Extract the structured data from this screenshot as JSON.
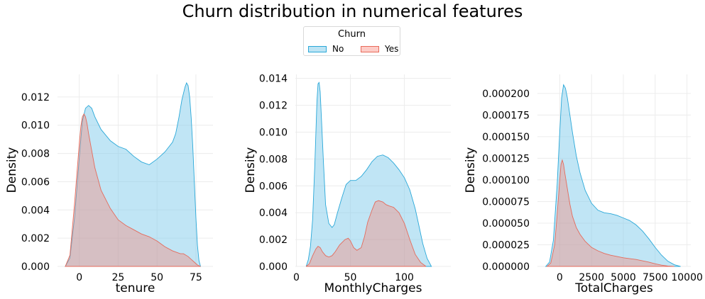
{
  "title": "Churn distribution in numerical features",
  "legend": {
    "title": "Churn",
    "entries": [
      {
        "label": "No",
        "fill": "#87ceeb",
        "stroke": "#2aa8d8"
      },
      {
        "label": "Yes",
        "fill": "#fa8072",
        "stroke": "#e86a5a"
      }
    ]
  },
  "colors": {
    "no_fill": "#87ceeb",
    "no_stroke": "#2aa8d8",
    "yes_fill": "#fa8072",
    "yes_stroke": "#e46b5c",
    "grid": "#ececec"
  },
  "chart_data": [
    {
      "type": "area",
      "xlabel": "tenure",
      "ylabel": "Density",
      "xlim": [
        -14,
        86
      ],
      "ylim": [
        0,
        0.0136
      ],
      "xticks": [
        0,
        25,
        50,
        75
      ],
      "xtick_labels": [
        "0",
        "25",
        "50",
        "75"
      ],
      "yticks": [
        0,
        0.002,
        0.004,
        0.006,
        0.008,
        0.01,
        0.012
      ],
      "ytick_labels": [
        "0.000",
        "0.002",
        "0.004",
        "0.006",
        "0.008",
        "0.010",
        "0.012"
      ],
      "grid": true,
      "series": [
        {
          "name": "No",
          "x": [
            -9,
            -6,
            -3,
            0,
            2,
            4,
            6,
            8,
            10,
            14,
            20,
            25,
            30,
            35,
            40,
            45,
            50,
            55,
            60,
            62,
            64,
            66,
            68,
            69,
            70,
            71,
            72,
            73,
            74,
            75,
            76,
            77,
            78
          ],
          "y": [
            0,
            0.0006,
            0.0035,
            0.0077,
            0.0103,
            0.0112,
            0.0114,
            0.0112,
            0.0106,
            0.0097,
            0.0089,
            0.0085,
            0.0083,
            0.0078,
            0.0074,
            0.0072,
            0.0076,
            0.0081,
            0.0088,
            0.0094,
            0.0105,
            0.0118,
            0.0127,
            0.013,
            0.0128,
            0.012,
            0.0105,
            0.0085,
            0.006,
            0.0035,
            0.0015,
            0.0004,
            0
          ]
        },
        {
          "name": "Yes",
          "x": [
            -9,
            -6,
            -3,
            0,
            1,
            2,
            3,
            4,
            5,
            6,
            8,
            10,
            14,
            20,
            25,
            30,
            35,
            40,
            45,
            50,
            55,
            60,
            65,
            67,
            70,
            72,
            74,
            76,
            78
          ],
          "y": [
            0,
            0.0008,
            0.0045,
            0.0087,
            0.0099,
            0.0106,
            0.0108,
            0.0106,
            0.0101,
            0.0094,
            0.0082,
            0.007,
            0.0054,
            0.0041,
            0.0033,
            0.0029,
            0.0026,
            0.0023,
            0.0021,
            0.0018,
            0.0014,
            0.0011,
            0.0009,
            0.0009,
            0.0007,
            0.0005,
            0.0003,
            0.0001,
            0
          ]
        }
      ]
    },
    {
      "type": "area",
      "xlabel": "MonthlyCharges",
      "ylabel": "Density",
      "xlim": [
        -1,
        143
      ],
      "ylim": [
        0,
        0.0143
      ],
      "xticks": [
        0,
        50,
        100
      ],
      "xtick_labels": [
        "0",
        "50",
        "100"
      ],
      "yticks": [
        0,
        0.002,
        0.004,
        0.006,
        0.008,
        0.01,
        0.012,
        0.014
      ],
      "ytick_labels": [
        "0.000",
        "0.002",
        "0.004",
        "0.006",
        "0.008",
        "0.010",
        "0.012",
        "0.014"
      ],
      "grid": true,
      "series": [
        {
          "name": "No",
          "x": [
            9,
            11,
            13,
            15,
            17,
            19,
            20,
            21,
            22,
            23,
            25,
            27,
            30,
            33,
            35,
            38,
            42,
            46,
            50,
            55,
            60,
            65,
            70,
            75,
            80,
            85,
            90,
            95,
            100,
            105,
            110,
            113,
            117,
            121,
            125
          ],
          "y": [
            0,
            0.0005,
            0.0015,
            0.0035,
            0.0075,
            0.0123,
            0.0136,
            0.0137,
            0.013,
            0.0113,
            0.0078,
            0.0046,
            0.0032,
            0.0029,
            0.0031,
            0.004,
            0.0051,
            0.0061,
            0.0064,
            0.0064,
            0.0067,
            0.0072,
            0.0078,
            0.0082,
            0.0083,
            0.0081,
            0.0077,
            0.0072,
            0.0066,
            0.0057,
            0.0043,
            0.0032,
            0.0017,
            0.0006,
            0
          ]
        },
        {
          "name": "Yes",
          "x": [
            9,
            12,
            15,
            18,
            20,
            22,
            24,
            27,
            30,
            33,
            36,
            40,
            45,
            48,
            50,
            53,
            56,
            60,
            63,
            66,
            70,
            73,
            76,
            80,
            83,
            86,
            90,
            95,
            100,
            105,
            110,
            115,
            120
          ],
          "y": [
            0,
            0.0002,
            0.0008,
            0.0013,
            0.0015,
            0.0014,
            0.0011,
            0.0008,
            0.0007,
            0.0008,
            0.0011,
            0.0016,
            0.002,
            0.0021,
            0.0019,
            0.0014,
            0.0012,
            0.0014,
            0.0022,
            0.0033,
            0.0042,
            0.0048,
            0.0049,
            0.0048,
            0.0046,
            0.0045,
            0.0044,
            0.004,
            0.0032,
            0.002,
            0.0009,
            0.0003,
            0
          ]
        }
      ]
    },
    {
      "type": "area",
      "xlabel": "TotalCharges",
      "ylabel": "Density",
      "xlim": [
        -1750,
        10300
      ],
      "ylim": [
        0,
        0.000222
      ],
      "xticks": [
        0,
        2500,
        5000,
        7500,
        10000
      ],
      "xtick_labels": [
        "0",
        "2500",
        "5000",
        "7500",
        "10000"
      ],
      "yticks": [
        0,
        2.5e-05,
        5e-05,
        7.5e-05,
        0.0001,
        0.000125,
        0.00015,
        0.000175,
        0.0002
      ],
      "ytick_labels": [
        "0.000000",
        "0.000025",
        "0.000050",
        "0.000075",
        "0.000100",
        "0.000125",
        "0.000150",
        "0.000175",
        "0.000200"
      ],
      "grid": true,
      "series": [
        {
          "name": "No",
          "x": [
            -1100,
            -800,
            -500,
            -200,
            0,
            150,
            300,
            450,
            600,
            800,
            1000,
            1300,
            1600,
            2000,
            2500,
            3000,
            3500,
            4000,
            4500,
            5000,
            5500,
            6000,
            6500,
            7000,
            7500,
            8000,
            8500,
            9000,
            9500
          ],
          "y": [
            0,
            5e-06,
            3e-05,
            9.5e-05,
            0.000155,
            0.000195,
            0.00021,
            0.000206,
            0.000195,
            0.000175,
            0.000155,
            0.000128,
            0.000108,
            8.8e-05,
            7.3e-05,
            6.5e-05,
            6.2e-05,
            6.1e-05,
            5.9e-05,
            5.6e-05,
            5.3e-05,
            4.8e-05,
            4.1e-05,
            3.2e-05,
            2.2e-05,
            1.3e-05,
            6e-06,
            2e-06,
            0
          ]
        },
        {
          "name": "Yes",
          "x": [
            -1000,
            -700,
            -400,
            -200,
            0,
            100,
            200,
            300,
            400,
            600,
            800,
            1000,
            1300,
            1600,
            2000,
            2500,
            3000,
            3500,
            4000,
            5000,
            6000,
            7000,
            7500,
            8000,
            8500,
            9000
          ],
          "y": [
            0,
            4e-06,
            2.5e-05,
            6e-05,
            0.0001,
            0.000118,
            0.000123,
            0.000118,
            0.000108,
            9e-05,
            7.2e-05,
            5.8e-05,
            4.5e-05,
            3.7e-05,
            2.9e-05,
            2.2e-05,
            1.8e-05,
            1.5e-05,
            1.3e-05,
            1e-05,
            8e-06,
            5e-06,
            3e-06,
            1.5e-06,
            5e-07,
            0
          ]
        }
      ]
    }
  ]
}
